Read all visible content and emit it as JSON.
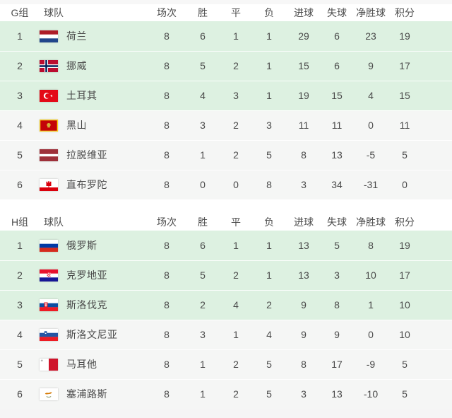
{
  "colors": {
    "highlight_row": "#ddf1e1",
    "plain_row": "#f5f6f5",
    "header_text": "#4d4d4d",
    "cell_text": "#4a4a4a"
  },
  "table_headers": {
    "team": "球队",
    "played": "场次",
    "win": "胜",
    "draw": "平",
    "loss": "负",
    "goals_for": "进球",
    "goals_against": "失球",
    "goal_diff": "净胜球",
    "points": "积分"
  },
  "groups": [
    {
      "label": "G组",
      "rows": [
        {
          "rank": "1",
          "team": "荷兰",
          "flag": "netherlands",
          "played": "8",
          "win": "6",
          "draw": "1",
          "loss": "1",
          "gf": "29",
          "ga": "6",
          "gd": "23",
          "pts": "19",
          "highlighted": true
        },
        {
          "rank": "2",
          "team": "挪威",
          "flag": "norway",
          "played": "8",
          "win": "5",
          "draw": "2",
          "loss": "1",
          "gf": "15",
          "ga": "6",
          "gd": "9",
          "pts": "17",
          "highlighted": true
        },
        {
          "rank": "3",
          "team": "土耳其",
          "flag": "turkey",
          "played": "8",
          "win": "4",
          "draw": "3",
          "loss": "1",
          "gf": "19",
          "ga": "15",
          "gd": "4",
          "pts": "15",
          "highlighted": true
        },
        {
          "rank": "4",
          "team": "黑山",
          "flag": "montenegro",
          "played": "8",
          "win": "3",
          "draw": "2",
          "loss": "3",
          "gf": "11",
          "ga": "11",
          "gd": "0",
          "pts": "11",
          "highlighted": false
        },
        {
          "rank": "5",
          "team": "拉脱维亚",
          "flag": "latvia",
          "played": "8",
          "win": "1",
          "draw": "2",
          "loss": "5",
          "gf": "8",
          "ga": "13",
          "gd": "-5",
          "pts": "5",
          "highlighted": false
        },
        {
          "rank": "6",
          "team": "直布罗陀",
          "flag": "gibraltar",
          "played": "8",
          "win": "0",
          "draw": "0",
          "loss": "8",
          "gf": "3",
          "ga": "34",
          "gd": "-31",
          "pts": "0",
          "highlighted": false
        }
      ]
    },
    {
      "label": "H组",
      "rows": [
        {
          "rank": "1",
          "team": "俄罗斯",
          "flag": "russia",
          "played": "8",
          "win": "6",
          "draw": "1",
          "loss": "1",
          "gf": "13",
          "ga": "5",
          "gd": "8",
          "pts": "19",
          "highlighted": true
        },
        {
          "rank": "2",
          "team": "克罗地亚",
          "flag": "croatia",
          "played": "8",
          "win": "5",
          "draw": "2",
          "loss": "1",
          "gf": "13",
          "ga": "3",
          "gd": "10",
          "pts": "17",
          "highlighted": true
        },
        {
          "rank": "3",
          "team": "斯洛伐克",
          "flag": "slovakia",
          "played": "8",
          "win": "2",
          "draw": "4",
          "loss": "2",
          "gf": "9",
          "ga": "8",
          "gd": "1",
          "pts": "10",
          "highlighted": true
        },
        {
          "rank": "4",
          "team": "斯洛文尼亚",
          "flag": "slovenia",
          "played": "8",
          "win": "3",
          "draw": "1",
          "loss": "4",
          "gf": "9",
          "ga": "9",
          "gd": "0",
          "pts": "10",
          "highlighted": false
        },
        {
          "rank": "5",
          "team": "马耳他",
          "flag": "malta",
          "played": "8",
          "win": "1",
          "draw": "2",
          "loss": "5",
          "gf": "8",
          "ga": "17",
          "gd": "-9",
          "pts": "5",
          "highlighted": false
        },
        {
          "rank": "6",
          "team": "塞浦路斯",
          "flag": "cyprus",
          "played": "8",
          "win": "1",
          "draw": "2",
          "loss": "5",
          "gf": "3",
          "ga": "13",
          "gd": "-10",
          "pts": "5",
          "highlighted": false
        }
      ]
    }
  ]
}
